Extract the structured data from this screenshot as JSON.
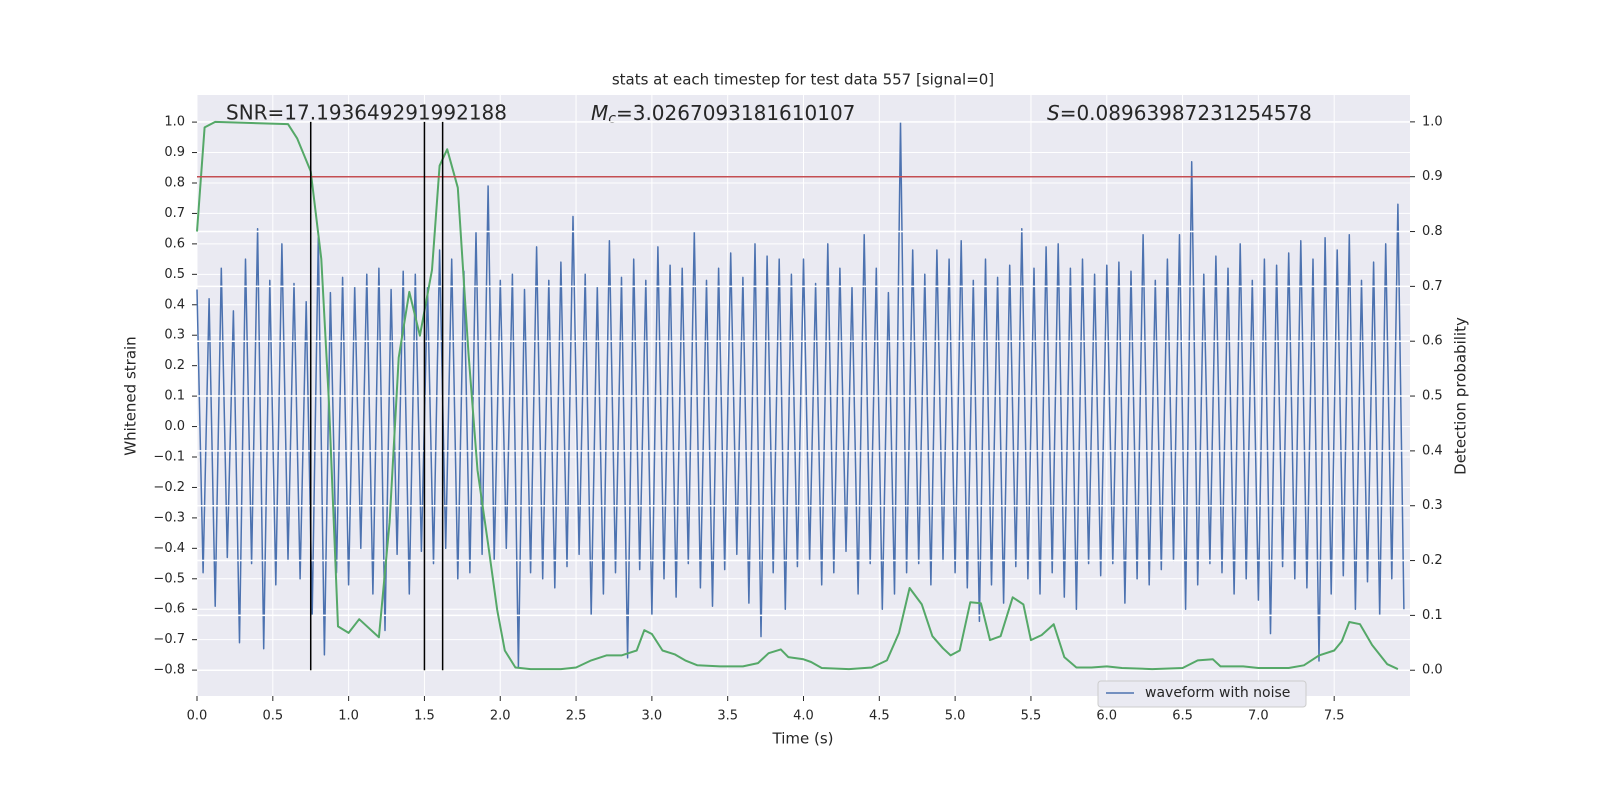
{
  "chart_data": {
    "type": "line",
    "title": "stats at each timestep for test data 557 [signal=0]",
    "xlabel": "Time (s)",
    "ylabel": "Whitened strain",
    "y2label": "Detection probability",
    "xlim": [
      0,
      8
    ],
    "ylim": [
      -0.885,
      1.089
    ],
    "y2lim": [
      -0.047,
      1.049
    ],
    "grid": true,
    "legend": "lower right",
    "xticks": [
      {
        "value": 0,
        "label": "0.0"
      },
      {
        "value": 0.5,
        "label": "0.5"
      },
      {
        "value": 1,
        "label": "1.0"
      },
      {
        "value": 1.5,
        "label": "1.5"
      },
      {
        "value": 2,
        "label": "2.0"
      },
      {
        "value": 2.5,
        "label": "2.5"
      },
      {
        "value": 3,
        "label": "3.0"
      },
      {
        "value": 3.5,
        "label": "3.5"
      },
      {
        "value": 4,
        "label": "4.0"
      },
      {
        "value": 4.5,
        "label": "4.5"
      },
      {
        "value": 5,
        "label": "5.0"
      },
      {
        "value": 5.5,
        "label": "5.5"
      },
      {
        "value": 6,
        "label": "6.0"
      },
      {
        "value": 6.5,
        "label": "6.5"
      },
      {
        "value": 7,
        "label": "7.0"
      },
      {
        "value": 7.5,
        "label": "7.5"
      }
    ],
    "yticks": [
      {
        "value": -0.8,
        "label": "−0.8"
      },
      {
        "value": -0.7,
        "label": "−0.7"
      },
      {
        "value": -0.6,
        "label": "−0.6"
      },
      {
        "value": -0.5,
        "label": "−0.5"
      },
      {
        "value": -0.4,
        "label": "−0.4"
      },
      {
        "value": -0.3,
        "label": "−0.3"
      },
      {
        "value": -0.2,
        "label": "−0.2"
      },
      {
        "value": -0.1,
        "label": "−0.1"
      },
      {
        "value": 0,
        "label": "0.0"
      },
      {
        "value": 0.1,
        "label": "0.1"
      },
      {
        "value": 0.2,
        "label": "0.2"
      },
      {
        "value": 0.3,
        "label": "0.3"
      },
      {
        "value": 0.4,
        "label": "0.4"
      },
      {
        "value": 0.5,
        "label": "0.5"
      },
      {
        "value": 0.6,
        "label": "0.6"
      },
      {
        "value": 0.7,
        "label": "0.7"
      },
      {
        "value": 0.8,
        "label": "0.8"
      },
      {
        "value": 0.9,
        "label": "0.9"
      },
      {
        "value": 1,
        "label": "1.0"
      }
    ],
    "y2ticks": [
      {
        "value": 0,
        "label": "0.0"
      },
      {
        "value": 0.1,
        "label": "0.1"
      },
      {
        "value": 0.2,
        "label": "0.2"
      },
      {
        "value": 0.3,
        "label": "0.3"
      },
      {
        "value": 0.4,
        "label": "0.4"
      },
      {
        "value": 0.5,
        "label": "0.5"
      },
      {
        "value": 0.6,
        "label": "0.6"
      },
      {
        "value": 0.7,
        "label": "0.7"
      },
      {
        "value": 0.8,
        "label": "0.8"
      },
      {
        "value": 0.9,
        "label": "0.9"
      },
      {
        "value": 1,
        "label": "1.0"
      }
    ],
    "series": [
      {
        "name": "waveform with noise",
        "color": "#4c72b0",
        "x": [
          0,
          0.04,
          0.08,
          0.12,
          0.16,
          0.2,
          0.24,
          0.28,
          0.32,
          0.36,
          0.4,
          0.44,
          0.48,
          0.52,
          0.56,
          0.6,
          0.64,
          0.68,
          0.72,
          0.76,
          0.8,
          0.84,
          0.88,
          0.92,
          0.96,
          1,
          1.04,
          1.08,
          1.12,
          1.16,
          1.2,
          1.24,
          1.28,
          1.32,
          1.36,
          1.4,
          1.44,
          1.48,
          1.52,
          1.56,
          1.6,
          1.64,
          1.68,
          1.72,
          1.76,
          1.8,
          1.84,
          1.88,
          1.92,
          1.96,
          2,
          2.04,
          2.08,
          2.12,
          2.16,
          2.2,
          2.24,
          2.28,
          2.32,
          2.36,
          2.4,
          2.44,
          2.48,
          2.52,
          2.56,
          2.6,
          2.64,
          2.68,
          2.72,
          2.76,
          2.8,
          2.84,
          2.88,
          2.92,
          2.96,
          3,
          3.04,
          3.08,
          3.12,
          3.16,
          3.2,
          3.24,
          3.28,
          3.32,
          3.36,
          3.4,
          3.44,
          3.48,
          3.52,
          3.56,
          3.6,
          3.64,
          3.68,
          3.72,
          3.76,
          3.8,
          3.84,
          3.88,
          3.92,
          3.96,
          4,
          4.04,
          4.08,
          4.12,
          4.16,
          4.2,
          4.24,
          4.28,
          4.32,
          4.36,
          4.4,
          4.44,
          4.48,
          4.52,
          4.56,
          4.6,
          4.64,
          4.68,
          4.72,
          4.76,
          4.8,
          4.84,
          4.88,
          4.92,
          4.96,
          5,
          5.04,
          5.08,
          5.12,
          5.16,
          5.2,
          5.24,
          5.28,
          5.32,
          5.36,
          5.4,
          5.44,
          5.48,
          5.52,
          5.56,
          5.6,
          5.64,
          5.68,
          5.72,
          5.76,
          5.8,
          5.84,
          5.88,
          5.92,
          5.96,
          6,
          6.04,
          6.08,
          6.12,
          6.16,
          6.2,
          6.24,
          6.28,
          6.32,
          6.36,
          6.4,
          6.44,
          6.48,
          6.52,
          6.56,
          6.6,
          6.64,
          6.68,
          6.72,
          6.76,
          6.8,
          6.84,
          6.88,
          6.92,
          6.96,
          7,
          7.04,
          7.08,
          7.12,
          7.16,
          7.2,
          7.24,
          7.28,
          7.32,
          7.36,
          7.4,
          7.44,
          7.48,
          7.52,
          7.56,
          7.6,
          7.64,
          7.68,
          7.72,
          7.76,
          7.8,
          7.84,
          7.88,
          7.92,
          7.96
        ],
        "values": [
          0.45,
          -0.48,
          0.42,
          -0.59,
          0.52,
          -0.43,
          0.38,
          -0.71,
          0.55,
          -0.45,
          0.65,
          -0.73,
          0.48,
          -0.52,
          0.6,
          -0.44,
          0.47,
          -0.5,
          0.41,
          -0.62,
          0.62,
          -0.75,
          0.44,
          -0.48,
          0.49,
          -0.52,
          0.46,
          -0.4,
          0.5,
          -0.55,
          0.52,
          -0.67,
          0.45,
          -0.42,
          0.51,
          -0.55,
          0.5,
          -0.41,
          0.46,
          -0.45,
          0.58,
          -0.4,
          0.55,
          -0.5,
          0.51,
          -0.48,
          0.64,
          -0.42,
          0.79,
          -0.44,
          0.48,
          -0.4,
          0.5,
          -0.79,
          0.45,
          -0.48,
          0.59,
          -0.5,
          0.48,
          -0.53,
          0.54,
          -0.46,
          0.69,
          -0.42,
          0.5,
          -0.62,
          0.46,
          -0.55,
          0.61,
          -0.48,
          0.49,
          -0.76,
          0.55,
          -0.47,
          0.48,
          -0.62,
          0.59,
          -0.5,
          0.53,
          -0.56,
          0.52,
          -0.45,
          0.64,
          -0.53,
          0.48,
          -0.59,
          0.52,
          -0.47,
          0.57,
          -0.42,
          0.49,
          -0.58,
          0.6,
          -0.69,
          0.56,
          -0.48,
          0.55,
          -0.6,
          0.5,
          -0.46,
          0.55,
          -0.44,
          0.47,
          -0.52,
          0.6,
          -0.48,
          0.52,
          -0.41,
          0.46,
          -0.55,
          0.63,
          -0.45,
          0.52,
          -0.6,
          0.44,
          -0.55,
          1.0,
          -0.48,
          0.58,
          -0.45,
          0.5,
          -0.52,
          0.58,
          -0.44,
          0.55,
          -0.48,
          0.61,
          -0.53,
          0.48,
          -0.64,
          0.55,
          -0.52,
          0.49,
          -0.58,
          0.53,
          -0.46,
          0.65,
          -0.5,
          0.52,
          -0.55,
          0.59,
          -0.48,
          0.6,
          -0.56,
          0.52,
          -0.6,
          0.55,
          -0.45,
          0.5,
          -0.49,
          0.53,
          -0.45,
          0.54,
          -0.58,
          0.51,
          -0.5,
          0.63,
          -0.52,
          0.48,
          -0.47,
          0.55,
          -0.44,
          0.63,
          -0.6,
          0.87,
          -0.52,
          0.5,
          -0.45,
          0.56,
          -0.48,
          0.52,
          -0.55,
          0.6,
          -0.5,
          0.48,
          -0.57,
          0.55,
          -0.68,
          0.53,
          -0.46,
          0.57,
          -0.5,
          0.61,
          -0.53,
          0.55,
          -0.77,
          0.62,
          -0.55,
          0.58,
          -0.49,
          0.63,
          -0.6,
          0.48,
          -0.51,
          0.54,
          -0.62,
          0.6,
          -0.5,
          0.73,
          -0.6
        ]
      },
      {
        "color": "#55a868",
        "axis": "y2",
        "x": [
          0,
          0.05,
          0.12,
          0.6,
          0.66,
          0.75,
          0.82,
          0.87,
          0.93,
          1,
          1.07,
          1.2,
          1.27,
          1.33,
          1.4,
          1.47,
          1.55,
          1.6,
          1.65,
          1.72,
          1.79,
          1.85,
          1.92,
          1.98,
          2.03,
          2.1,
          2.2,
          2.4,
          2.5,
          2.6,
          2.7,
          2.8,
          2.9,
          2.95,
          3,
          3.07,
          3.15,
          3.22,
          3.3,
          3.45,
          3.6,
          3.7,
          3.77,
          3.85,
          3.9,
          4,
          4.05,
          4.12,
          4.3,
          4.45,
          4.55,
          4.63,
          4.7,
          4.78,
          4.85,
          4.92,
          4.97,
          5.03,
          5.1,
          5.17,
          5.23,
          5.3,
          5.38,
          5.45,
          5.5,
          5.57,
          5.65,
          5.72,
          5.8,
          5.9,
          6,
          6.1,
          6.3,
          6.5,
          6.6,
          6.7,
          6.75,
          6.9,
          7,
          7.2,
          7.3,
          7.4,
          7.5,
          7.55,
          7.6,
          7.67,
          7.75,
          7.85,
          7.92
        ],
        "values": [
          0.8,
          0.99,
          1.0,
          0.996,
          0.97,
          0.91,
          0.75,
          0.49,
          0.08,
          0.068,
          0.093,
          0.06,
          0.27,
          0.57,
          0.69,
          0.61,
          0.73,
          0.92,
          0.95,
          0.88,
          0.58,
          0.365,
          0.23,
          0.11,
          0.036,
          0.005,
          0.002,
          0.002,
          0.005,
          0.018,
          0.027,
          0.027,
          0.036,
          0.073,
          0.066,
          0.036,
          0.029,
          0.018,
          0.009,
          0.007,
          0.007,
          0.013,
          0.031,
          0.038,
          0.024,
          0.02,
          0.015,
          0.004,
          0.002,
          0.005,
          0.018,
          0.068,
          0.15,
          0.12,
          0.062,
          0.04,
          0.027,
          0.036,
          0.124,
          0.122,
          0.055,
          0.062,
          0.133,
          0.12,
          0.055,
          0.064,
          0.084,
          0.024,
          0.005,
          0.005,
          0.007,
          0.004,
          0.002,
          0.004,
          0.018,
          0.02,
          0.007,
          0.007,
          0.004,
          0.004,
          0.009,
          0.027,
          0.036,
          0.053,
          0.088,
          0.084,
          0.046,
          0.011,
          0.002
        ]
      }
    ],
    "hlines": [
      {
        "value": 0.9,
        "axis": "y2",
        "color": "#c44e52"
      }
    ],
    "vlines": {
      "x": [
        0.75,
        1.5,
        1.62
      ],
      "ymin": 0,
      "ymax": 1,
      "axis": "y2",
      "color": "#000000"
    },
    "annotations": [
      {
        "text": "SNR=17.193649291992188"
      },
      {
        "symbol": "M",
        "subscript": "c",
        "text": "=3.0267093181610107"
      },
      {
        "symbol": "S",
        "text": "=0.08963987231254578"
      }
    ]
  }
}
